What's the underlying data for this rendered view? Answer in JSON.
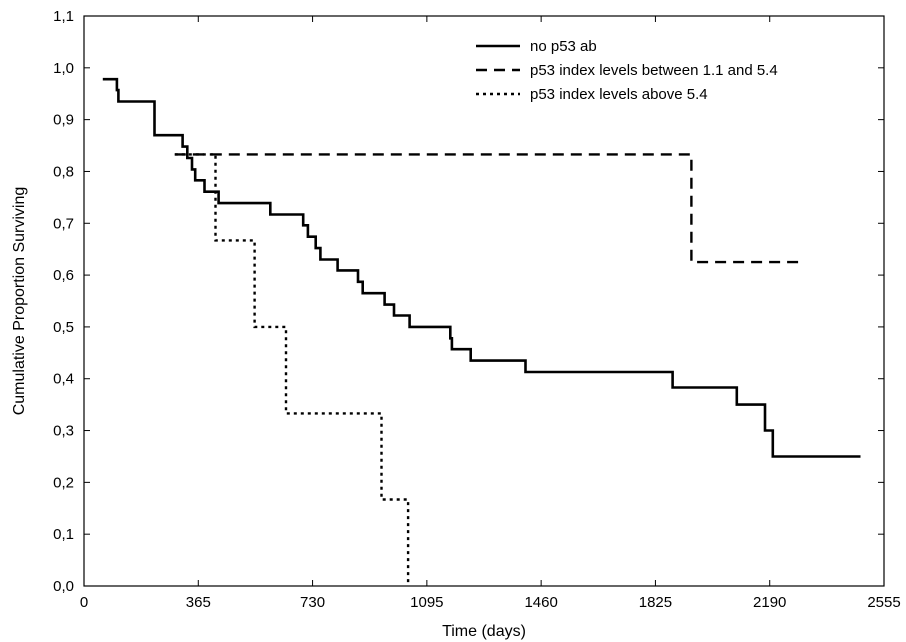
{
  "chart_data": {
    "type": "line",
    "step": true,
    "title": "",
    "xlabel": "Time (days)",
    "ylabel": "Cumulative Proportion Surviving",
    "xlim": [
      0,
      2555
    ],
    "ylim": [
      0.0,
      1.1
    ],
    "xticks": [
      0,
      365,
      730,
      1095,
      1460,
      1825,
      2190,
      2555
    ],
    "yticks": [
      0.0,
      0.1,
      0.2,
      0.3,
      0.4,
      0.5,
      0.6,
      0.7,
      0.8,
      0.9,
      1.0,
      1.1
    ],
    "xtick_labels": [
      "0",
      "365",
      "730",
      "1095",
      "1460",
      "1825",
      "2190",
      "2555"
    ],
    "ytick_labels": [
      "0,0",
      "0,1",
      "0,2",
      "0,3",
      "0,4",
      "0,5",
      "0,6",
      "0,7",
      "0,8",
      "0,9",
      "1,0",
      "1,1"
    ],
    "grid": false,
    "legend_position": "top-right",
    "series": [
      {
        "name": "no p53 ab",
        "style": "solid",
        "points": [
          [
            60,
            0.978
          ],
          [
            105,
            0.978
          ],
          [
            105,
            0.957
          ],
          [
            110,
            0.957
          ],
          [
            110,
            0.935
          ],
          [
            225,
            0.935
          ],
          [
            225,
            0.87
          ],
          [
            315,
            0.87
          ],
          [
            315,
            0.848
          ],
          [
            330,
            0.848
          ],
          [
            330,
            0.826
          ],
          [
            345,
            0.826
          ],
          [
            345,
            0.804
          ],
          [
            355,
            0.804
          ],
          [
            355,
            0.783
          ],
          [
            385,
            0.783
          ],
          [
            385,
            0.761
          ],
          [
            430,
            0.761
          ],
          [
            430,
            0.739
          ],
          [
            595,
            0.739
          ],
          [
            595,
            0.717
          ],
          [
            700,
            0.717
          ],
          [
            700,
            0.696
          ],
          [
            715,
            0.696
          ],
          [
            715,
            0.674
          ],
          [
            740,
            0.674
          ],
          [
            740,
            0.652
          ],
          [
            755,
            0.652
          ],
          [
            755,
            0.63
          ],
          [
            810,
            0.63
          ],
          [
            810,
            0.609
          ],
          [
            875,
            0.609
          ],
          [
            875,
            0.587
          ],
          [
            890,
            0.587
          ],
          [
            890,
            0.565
          ],
          [
            960,
            0.565
          ],
          [
            960,
            0.543
          ],
          [
            990,
            0.543
          ],
          [
            990,
            0.522
          ],
          [
            1040,
            0.522
          ],
          [
            1040,
            0.5
          ],
          [
            1170,
            0.5
          ],
          [
            1170,
            0.478
          ],
          [
            1175,
            0.478
          ],
          [
            1175,
            0.457
          ],
          [
            1235,
            0.457
          ],
          [
            1235,
            0.435
          ],
          [
            1410,
            0.435
          ],
          [
            1410,
            0.413
          ],
          [
            1880,
            0.413
          ],
          [
            1880,
            0.383
          ],
          [
            2085,
            0.383
          ],
          [
            2085,
            0.35
          ],
          [
            2175,
            0.35
          ],
          [
            2175,
            0.3
          ],
          [
            2200,
            0.3
          ],
          [
            2200,
            0.25
          ],
          [
            2480,
            0.25
          ]
        ]
      },
      {
        "name": "p53 index levels between 1.1 and 5.4",
        "style": "dashed",
        "points": [
          [
            290,
            0.833
          ],
          [
            1940,
            0.833
          ],
          [
            1940,
            0.625
          ],
          [
            2300,
            0.625
          ]
        ]
      },
      {
        "name": "p53 index levels above 5.4",
        "style": "dotted",
        "points": [
          [
            290,
            0.833
          ],
          [
            420,
            0.833
          ],
          [
            420,
            0.667
          ],
          [
            545,
            0.667
          ],
          [
            545,
            0.5
          ],
          [
            645,
            0.5
          ],
          [
            645,
            0.333
          ],
          [
            950,
            0.333
          ],
          [
            950,
            0.167
          ],
          [
            1035,
            0.167
          ],
          [
            1035,
            0.0
          ]
        ]
      }
    ]
  }
}
